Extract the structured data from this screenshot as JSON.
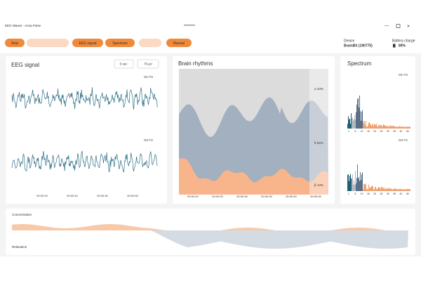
{
  "window": {
    "title": "EEG Waves - Anna Pulse"
  },
  "toolbar": {
    "buttons": [
      "Stop",
      "EEG signal",
      "Spectrum",
      "Manual"
    ]
  },
  "device": {
    "label": "Device",
    "name": "BrainBit (190775)",
    "battery_label": "Battery charge",
    "battery": "89%"
  },
  "eeg": {
    "title": "EEG signal",
    "controls": [
      "5 sec",
      "70 µV"
    ],
    "channels": [
      "O1-T3",
      "O2-T4"
    ],
    "time_ticks": [
      "00:00:43",
      "00:00:44",
      "00:00:45",
      "00:00:46"
    ]
  },
  "rhythms": {
    "title": "Brain rhythms",
    "bands": [
      "α 33%",
      "θ 54%",
      "β 13%"
    ],
    "time_ticks": [
      "00:00:20",
      "00:00:25",
      "00:00:30",
      "00:00:35",
      "00:00:40",
      "00:00:45"
    ]
  },
  "spectrum": {
    "title": "Spectrum",
    "channels": [
      "O1-T3",
      "O2-T4"
    ],
    "freq_ticks": [
      "1",
      "5",
      "10",
      "15",
      "20",
      "25",
      "30",
      "35",
      "40",
      "45"
    ]
  },
  "metrics": {
    "labels": [
      "Concentration",
      "Relaxation"
    ]
  }
}
